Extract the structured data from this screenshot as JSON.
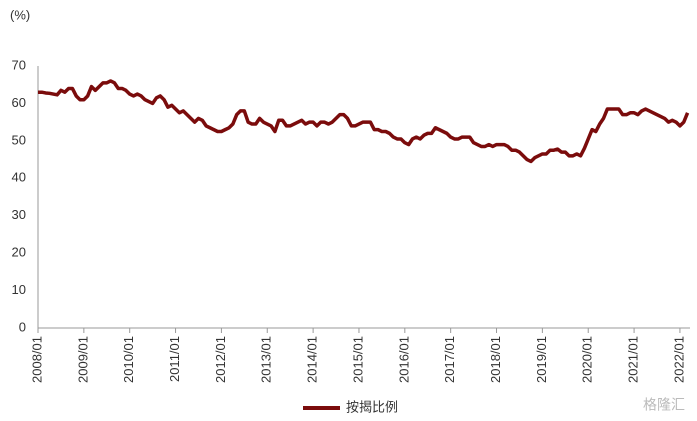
{
  "chart_data": {
    "type": "line",
    "y_label": "(%)",
    "categories": [
      "2008/01",
      null,
      null,
      null,
      null,
      null,
      null,
      null,
      null,
      null,
      null,
      null,
      "2009/01",
      null,
      null,
      null,
      null,
      null,
      null,
      null,
      null,
      null,
      null,
      null,
      "2010/01",
      null,
      null,
      null,
      null,
      null,
      null,
      null,
      null,
      null,
      null,
      null,
      "2011/01",
      null,
      null,
      null,
      null,
      null,
      null,
      null,
      null,
      null,
      null,
      null,
      "2012/01",
      null,
      null,
      null,
      null,
      null,
      null,
      null,
      null,
      null,
      null,
      null,
      "2013/01",
      null,
      null,
      null,
      null,
      null,
      null,
      null,
      null,
      null,
      null,
      null,
      "2014/01",
      null,
      null,
      null,
      null,
      null,
      null,
      null,
      null,
      null,
      null,
      null,
      "2015/01",
      null,
      null,
      null,
      null,
      null,
      null,
      null,
      null,
      null,
      null,
      null,
      "2016/01",
      null,
      null,
      null,
      null,
      null,
      null,
      null,
      null,
      null,
      null,
      null,
      "2017/01",
      null,
      null,
      null,
      null,
      null,
      null,
      null,
      null,
      null,
      null,
      null,
      "2018/01",
      null,
      null,
      null,
      null,
      null,
      null,
      null,
      null,
      null,
      null,
      null,
      "2019/01",
      null,
      null,
      null,
      null,
      null,
      null,
      null,
      null,
      null,
      null,
      null,
      "2020/01",
      null,
      null,
      null,
      null,
      null,
      null,
      null,
      null,
      null,
      null,
      null,
      "2021/01",
      null,
      null,
      null,
      null,
      null,
      null,
      null,
      null,
      null,
      null,
      null,
      "2022/01",
      null,
      null
    ],
    "series": [
      {
        "name": "按揭比例",
        "color": "#7b0c0c",
        "values": [
          63,
          63,
          62.8,
          62.7,
          62.5,
          62.3,
          63.5,
          63,
          64,
          64,
          62,
          61,
          61,
          62,
          64.5,
          63.5,
          64.5,
          65.5,
          65.5,
          66,
          65.5,
          64,
          64,
          63.5,
          62.5,
          62,
          62.5,
          62,
          61,
          60.5,
          60,
          61.5,
          62,
          61,
          59,
          59.5,
          58.5,
          57.5,
          58,
          57,
          56,
          55,
          56,
          55.5,
          54,
          53.5,
          53,
          52.5,
          52.5,
          53,
          53.5,
          54.5,
          57,
          58,
          58,
          55,
          54.5,
          54.5,
          56,
          55,
          54.5,
          54,
          52.5,
          55.5,
          55.5,
          54,
          54,
          54.5,
          55,
          55.5,
          54.5,
          55,
          55,
          54,
          55,
          55,
          54.5,
          55,
          56,
          57,
          57,
          56,
          54,
          54,
          54.5,
          55,
          55,
          55,
          53,
          53,
          52.5,
          52.5,
          52,
          51,
          50.5,
          50.5,
          49.5,
          49,
          50.5,
          51,
          50.5,
          51.5,
          52,
          52,
          53.5,
          53,
          52.5,
          52,
          51,
          50.5,
          50.5,
          51,
          51,
          51,
          49.5,
          49,
          48.5,
          48.5,
          49,
          48.5,
          49,
          49,
          49,
          48.5,
          47.5,
          47.5,
          47,
          46,
          45,
          44.5,
          45.5,
          46,
          46.5,
          46.5,
          47.5,
          47.5,
          47.8,
          47,
          47,
          46,
          46,
          46.5,
          46,
          48,
          50.5,
          53,
          52.5,
          54.5,
          56,
          58.5,
          58.5,
          58.5,
          58.5,
          57,
          57,
          57.5,
          57.5,
          57,
          58,
          58.5,
          58,
          57.5,
          57,
          56.5,
          56,
          55,
          55.5,
          55,
          54,
          55,
          57.5
        ]
      }
    ],
    "ylim": [
      0,
      70
    ],
    "yticks": [
      0,
      10,
      20,
      30,
      40,
      50,
      60,
      70
    ],
    "grid": false,
    "legend": "bottom",
    "watermark": "格隆汇"
  }
}
